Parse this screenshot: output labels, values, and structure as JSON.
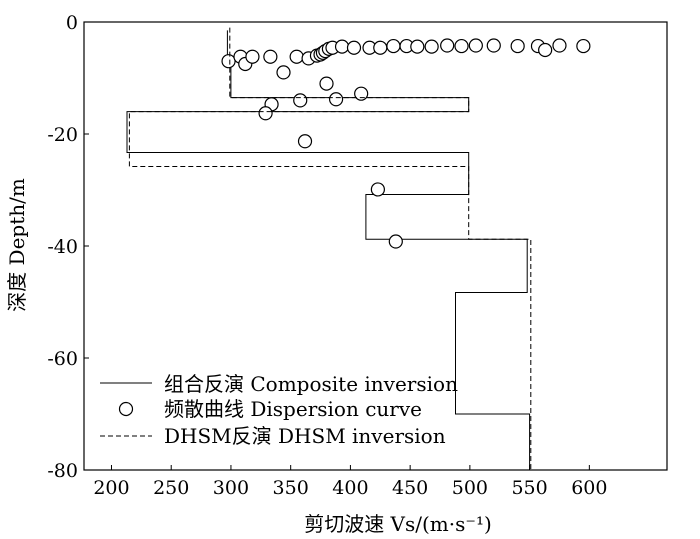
{
  "chart_data": {
    "type": "line",
    "xlabel": "剪切波速 Vs/(m·s⁻¹)",
    "ylabel": "深度 Depth/m",
    "xlim": [
      177,
      665
    ],
    "ylim": [
      0,
      -80
    ],
    "x_ticks": [
      "200",
      "250",
      "300",
      "350",
      "400",
      "450",
      "500",
      "550",
      "600"
    ],
    "x_tick_values": [
      200,
      250,
      300,
      350,
      400,
      450,
      500,
      550,
      600
    ],
    "y_ticks": [
      "0",
      "-20",
      "-40",
      "-60",
      "-80"
    ],
    "y_tick_values": [
      0,
      -20,
      -40,
      -60,
      -80
    ],
    "legend_position": "bottom-left",
    "grid": false,
    "series": [
      {
        "name": "组合反演 Composite inversion",
        "style": "solid",
        "points": [
          [
            297,
            -1.5
          ],
          [
            297,
            -7
          ],
          [
            300,
            -7
          ],
          [
            300,
            -13.5
          ],
          [
            499,
            -13.5
          ],
          [
            499,
            -16
          ],
          [
            213,
            -16
          ],
          [
            213,
            -23.3
          ],
          [
            499,
            -23.3
          ],
          [
            499,
            -30.8
          ],
          [
            413,
            -30.8
          ],
          [
            413,
            -38.8
          ],
          [
            548,
            -38.8
          ],
          [
            548,
            -48.3
          ],
          [
            488,
            -48.3
          ],
          [
            488,
            -70
          ],
          [
            550,
            -70
          ],
          [
            550,
            -80
          ]
        ]
      },
      {
        "name": "频散曲线 Dispersion curve",
        "style": "circles",
        "points": [
          [
            298,
            -7
          ],
          [
            308,
            -6.2
          ],
          [
            312,
            -7.5
          ],
          [
            318,
            -6.2
          ],
          [
            333,
            -6.2
          ],
          [
            344,
            -9
          ],
          [
            355,
            -6.2
          ],
          [
            365,
            -6.5
          ],
          [
            372,
            -6
          ],
          [
            375,
            -5.8
          ],
          [
            377,
            -5.5
          ],
          [
            379,
            -5.2
          ],
          [
            382,
            -4.8
          ],
          [
            385,
            -4.6
          ],
          [
            393,
            -4.4
          ],
          [
            403,
            -4.6
          ],
          [
            416,
            -4.6
          ],
          [
            425,
            -4.6
          ],
          [
            436,
            -4.3
          ],
          [
            447,
            -4.3
          ],
          [
            456,
            -4.4
          ],
          [
            468,
            -4.4
          ],
          [
            481,
            -4.2
          ],
          [
            493,
            -4.3
          ],
          [
            505,
            -4.2
          ],
          [
            520,
            -4.2
          ],
          [
            540,
            -4.3
          ],
          [
            557,
            -4.3
          ],
          [
            563,
            -5
          ],
          [
            575,
            -4.2
          ],
          [
            595,
            -4.3
          ],
          [
            380,
            -11
          ],
          [
            409,
            -12.8
          ],
          [
            388,
            -13.8
          ],
          [
            358,
            -14
          ],
          [
            334,
            -14.7
          ],
          [
            329,
            -16.3
          ],
          [
            362,
            -21.3
          ],
          [
            423,
            -29.9
          ],
          [
            438,
            -39.2
          ]
        ]
      },
      {
        "name": "DHSM反演 DHSM inversion",
        "style": "dashed",
        "points": [
          [
            299,
            -1
          ],
          [
            299,
            -13.5
          ],
          [
            499,
            -13.5
          ],
          [
            499,
            -16
          ],
          [
            215,
            -16
          ],
          [
            215,
            -25.8
          ],
          [
            499,
            -25.8
          ],
          [
            499,
            -38.8
          ],
          [
            551,
            -38.8
          ],
          [
            551,
            -80
          ]
        ]
      }
    ]
  }
}
